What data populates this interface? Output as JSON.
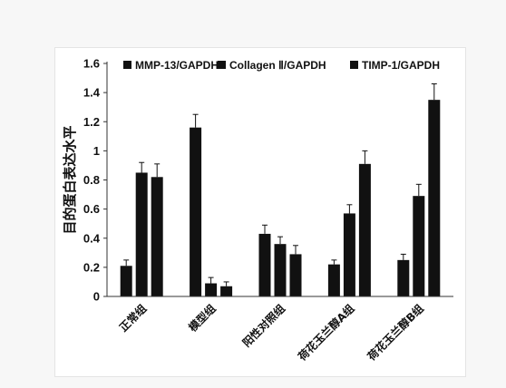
{
  "chart_data": {
    "type": "bar",
    "title": "",
    "xlabel": "",
    "ylabel": "目的蛋白表达水平",
    "ylim": [
      0,
      1.6
    ],
    "yticks": [
      "0",
      "0.2",
      "0.4",
      "0.6",
      "0.8",
      "1",
      "1.2",
      "1.4",
      "1.6"
    ],
    "categories": [
      "正常组",
      "模型组",
      "阳性对照组",
      "荷花玉兰醇A组",
      "荷花玉兰醇B组"
    ],
    "series": [
      {
        "name": "MMP-13/GAPDH",
        "values": [
          0.21,
          1.16,
          0.43,
          0.22,
          0.25
        ],
        "errors": [
          0.04,
          0.09,
          0.06,
          0.03,
          0.04
        ]
      },
      {
        "name": "Collagen Ⅱ/GAPDH",
        "values": [
          0.85,
          0.09,
          0.36,
          0.57,
          0.69
        ],
        "errors": [
          0.07,
          0.04,
          0.05,
          0.06,
          0.08
        ]
      },
      {
        "name": "TIMP-1/GAPDH",
        "values": [
          0.82,
          0.07,
          0.29,
          0.91,
          1.35
        ],
        "errors": [
          0.09,
          0.03,
          0.06,
          0.09,
          0.11
        ]
      }
    ],
    "bar_color": "#111111",
    "grid": false,
    "legend_position": "top"
  }
}
